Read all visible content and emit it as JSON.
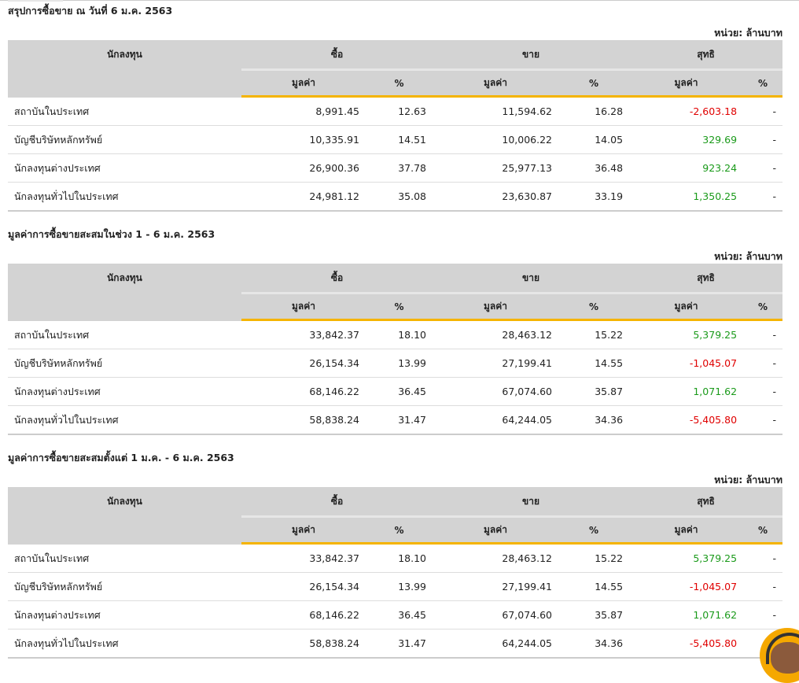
{
  "unit_label": "หน่วย: ล้านบาท",
  "headers": {
    "investor": "นักลงทุน",
    "buy": "ซื้อ",
    "sell": "ขาย",
    "net": "สุทธิ",
    "value": "มูลค่า",
    "pct": "%"
  },
  "colors": {
    "negative": "#e00000",
    "positive": "#1a9a1a",
    "accent": "#f5b400"
  },
  "sections": [
    {
      "title": "สรุปการซื้อขาย ณ วันที่ 6 ม.ค. 2563",
      "rows": [
        {
          "name": "สถาบันในประเทศ",
          "buy": "8,991.45",
          "buy_pct": "12.63",
          "sell": "11,594.62",
          "sell_pct": "16.28",
          "net": "-2,603.18",
          "net_pct": "-"
        },
        {
          "name": "บัญชีบริษัทหลักทรัพย์",
          "buy": "10,335.91",
          "buy_pct": "14.51",
          "sell": "10,006.22",
          "sell_pct": "14.05",
          "net": "329.69",
          "net_pct": "-"
        },
        {
          "name": "นักลงทุนต่างประเทศ",
          "buy": "26,900.36",
          "buy_pct": "37.78",
          "sell": "25,977.13",
          "sell_pct": "36.48",
          "net": "923.24",
          "net_pct": "-"
        },
        {
          "name": "นักลงทุนทั่วไปในประเทศ",
          "buy": "24,981.12",
          "buy_pct": "35.08",
          "sell": "23,630.87",
          "sell_pct": "33.19",
          "net": "1,350.25",
          "net_pct": "-"
        }
      ]
    },
    {
      "title": "มูลค่าการซื้อขายสะสมในช่วง 1 - 6 ม.ค. 2563",
      "rows": [
        {
          "name": "สถาบันในประเทศ",
          "buy": "33,842.37",
          "buy_pct": "18.10",
          "sell": "28,463.12",
          "sell_pct": "15.22",
          "net": "5,379.25",
          "net_pct": "-"
        },
        {
          "name": "บัญชีบริษัทหลักทรัพย์",
          "buy": "26,154.34",
          "buy_pct": "13.99",
          "sell": "27,199.41",
          "sell_pct": "14.55",
          "net": "-1,045.07",
          "net_pct": "-"
        },
        {
          "name": "นักลงทุนต่างประเทศ",
          "buy": "68,146.22",
          "buy_pct": "36.45",
          "sell": "67,074.60",
          "sell_pct": "35.87",
          "net": "1,071.62",
          "net_pct": "-"
        },
        {
          "name": "นักลงทุนทั่วไปในประเทศ",
          "buy": "58,838.24",
          "buy_pct": "31.47",
          "sell": "64,244.05",
          "sell_pct": "34.36",
          "net": "-5,405.80",
          "net_pct": "-"
        }
      ]
    },
    {
      "title": "มูลค่าการซื้อขายสะสมตั้งแต่ 1 ม.ค. - 6 ม.ค. 2563",
      "rows": [
        {
          "name": "สถาบันในประเทศ",
          "buy": "33,842.37",
          "buy_pct": "18.10",
          "sell": "28,463.12",
          "sell_pct": "15.22",
          "net": "5,379.25",
          "net_pct": "-"
        },
        {
          "name": "บัญชีบริษัทหลักทรัพย์",
          "buy": "26,154.34",
          "buy_pct": "13.99",
          "sell": "27,199.41",
          "sell_pct": "14.55",
          "net": "-1,045.07",
          "net_pct": "-"
        },
        {
          "name": "นักลงทุนต่างประเทศ",
          "buy": "68,146.22",
          "buy_pct": "36.45",
          "sell": "67,074.60",
          "sell_pct": "35.87",
          "net": "1,071.62",
          "net_pct": "-"
        },
        {
          "name": "นักลงทุนทั่วไปในประเทศ",
          "buy": "58,838.24",
          "buy_pct": "31.47",
          "sell": "64,244.05",
          "sell_pct": "34.36",
          "net": "-5,405.80",
          "net_pct": "-"
        }
      ]
    }
  ]
}
